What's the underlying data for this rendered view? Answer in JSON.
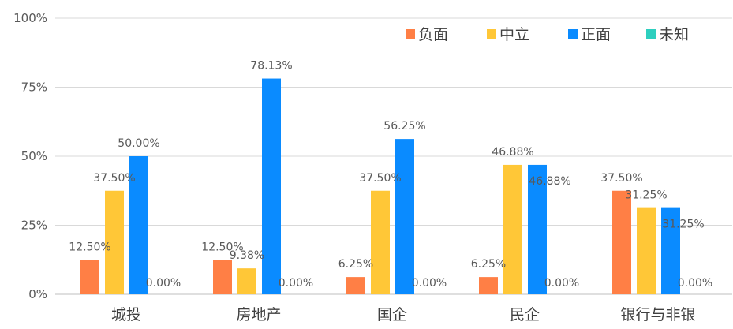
{
  "chart_data": {
    "type": "bar",
    "categories": [
      "城投",
      "房地产",
      "国企",
      "民企",
      "银行与非银"
    ],
    "series": [
      {
        "name": "负面",
        "color": "#FF7F45",
        "values": [
          12.5,
          12.5,
          6.25,
          6.25,
          37.5
        ],
        "labels": [
          "12.50%",
          "12.50%",
          "6.25%",
          "6.25%",
          "37.50%"
        ]
      },
      {
        "name": "中立",
        "color": "#FFC737",
        "values": [
          37.5,
          9.38,
          37.5,
          46.88,
          31.25
        ],
        "labels": [
          "37.50%",
          "9.38%",
          "37.50%",
          "46.88%",
          "31.25%"
        ]
      },
      {
        "name": "正面",
        "color": "#0A8BFF",
        "values": [
          50.0,
          78.13,
          56.25,
          46.88,
          31.25
        ],
        "labels": [
          "50.00%",
          "78.13%",
          "56.25%",
          "46.88%",
          "31.25%"
        ]
      },
      {
        "name": "未知",
        "color": "#2ECFBF",
        "values": [
          0,
          0,
          0,
          0,
          0
        ],
        "labels": [
          "0.00%",
          "0.00%",
          "0.00%",
          "0.00%",
          "0.00%"
        ]
      }
    ],
    "y_ticks": [
      "0%",
      "25%",
      "50%",
      "75%",
      "100%"
    ],
    "ylim": [
      0,
      100
    ],
    "grid": true,
    "legend_position": "top-right"
  }
}
